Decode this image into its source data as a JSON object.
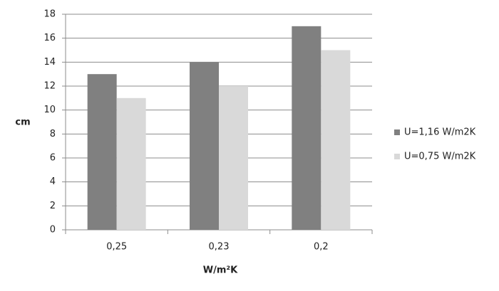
{
  "chart_data": {
    "type": "bar",
    "y_label": "cm",
    "x_label": "W/m²K",
    "categories": [
      "0,25",
      "0,23",
      "0,2"
    ],
    "series": [
      {
        "name": "U=1,16 W/m2K",
        "color": "#808080",
        "values": [
          13,
          14,
          17
        ]
      },
      {
        "name": "U=0,75 W/m2K",
        "color": "#d9d9d9",
        "values": [
          11,
          12,
          15
        ]
      }
    ],
    "ylim": [
      0,
      18
    ],
    "yticks": [
      0,
      2,
      4,
      6,
      8,
      10,
      12,
      14,
      16,
      18
    ],
    "grid": true,
    "legend": "right"
  }
}
